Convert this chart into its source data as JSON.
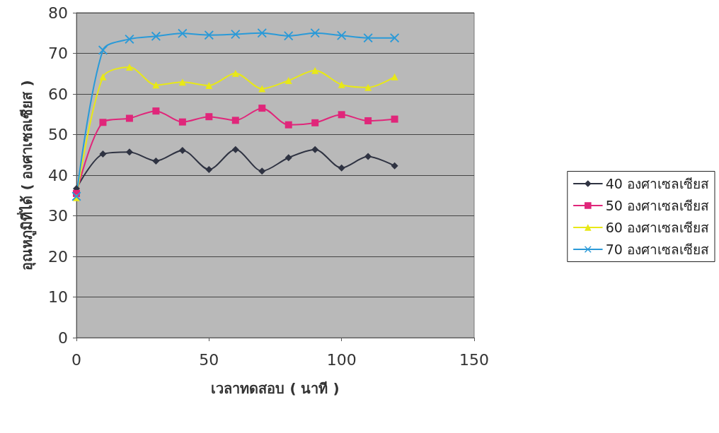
{
  "chart_data": {
    "type": "line",
    "xlabel": "เวลาทดสอบ ( นาที )",
    "ylabel": "อุณหภูมิที่ได้ ( องศาเซลเซียส )",
    "x": [
      0,
      10,
      20,
      30,
      40,
      50,
      60,
      70,
      80,
      90,
      100,
      110,
      120
    ],
    "series": [
      {
        "name": "40 องศาเซลเซียส",
        "color": "#2f3342",
        "marker": "diamond",
        "values": [
          36.7,
          45.2,
          45.7,
          43.5,
          46.1,
          41.4,
          46.3,
          41.0,
          44.3,
          46.3,
          41.8,
          44.6,
          42.3
        ]
      },
      {
        "name": "50 องศาเซลเซียส",
        "color": "#e0267a",
        "marker": "square",
        "values": [
          35.5,
          53.0,
          54.0,
          55.8,
          53.1,
          54.4,
          53.5,
          56.5,
          52.4,
          52.9,
          54.9,
          53.4,
          53.8
        ]
      },
      {
        "name": "60 องศาเซลเซียส",
        "color": "#e8e817",
        "marker": "triangle",
        "values": [
          34.5,
          64.2,
          66.6,
          62.2,
          62.9,
          62.1,
          65.1,
          61.3,
          63.3,
          65.8,
          62.3,
          61.6,
          64.2
        ]
      },
      {
        "name": "70 องศาเซลเซียส",
        "color": "#2a9ad8",
        "marker": "cross",
        "values": [
          34.8,
          70.8,
          73.5,
          74.2,
          74.9,
          74.5,
          74.7,
          75.0,
          74.3,
          75.0,
          74.4,
          73.8,
          73.8
        ]
      }
    ],
    "xlim": [
      0,
      150
    ],
    "xticks": [
      0,
      50,
      100,
      150
    ],
    "ylim": [
      0,
      80
    ],
    "yticks": [
      0,
      10,
      20,
      30,
      40,
      50,
      60,
      70,
      80
    ],
    "grid": "y",
    "legend": "right",
    "line_style": "solid"
  }
}
